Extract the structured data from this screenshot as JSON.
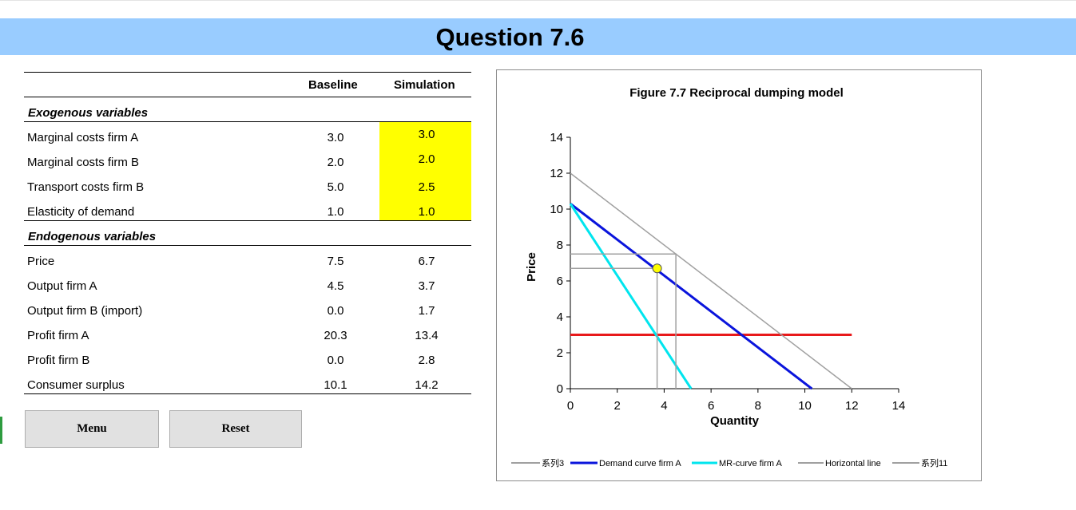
{
  "title": "Question 7.6",
  "table": {
    "col_baseline": "Baseline",
    "col_simulation": "Simulation",
    "exogenous_label": "Exogenous variables",
    "endogenous_label": "Endogenous variables",
    "exogenous": [
      {
        "label": "Marginal costs firm A",
        "baseline": "3.0",
        "simulation": "3.0"
      },
      {
        "label": "Marginal costs firm B",
        "baseline": "2.0",
        "simulation": "2.0"
      },
      {
        "label": "Transport costs firm B",
        "baseline": "5.0",
        "simulation": "2.5"
      },
      {
        "label": "Elasticity of demand",
        "baseline": "1.0",
        "simulation": "1.0"
      }
    ],
    "endogenous": [
      {
        "label": "Price",
        "baseline": "7.5",
        "simulation": "6.7"
      },
      {
        "label": "Output firm A",
        "baseline": "4.5",
        "simulation": "3.7"
      },
      {
        "label": "Output firm B (import)",
        "baseline": "0.0",
        "simulation": "1.7"
      },
      {
        "label": "Profit firm A",
        "baseline": "20.3",
        "simulation": "13.4"
      },
      {
        "label": "Profit firm B",
        "baseline": "0.0",
        "simulation": "2.8"
      },
      {
        "label": "Consumer surplus",
        "baseline": "10.1",
        "simulation": "14.2"
      }
    ],
    "highlight_color": "#ffff00"
  },
  "buttons": {
    "menu": "Menu",
    "reset": "Reset"
  },
  "chart_data": {
    "type": "line",
    "title": "Figure 7.7 Reciprocal dumping model",
    "xlabel": "Quantity",
    "ylabel": "Price",
    "xlim": [
      0,
      14
    ],
    "ylim": [
      0,
      14
    ],
    "xticks": [
      "0",
      "2",
      "4",
      "6",
      "8",
      "10",
      "12",
      "14"
    ],
    "yticks": [
      "0",
      "2",
      "4",
      "6",
      "8",
      "10",
      "12",
      "14"
    ],
    "grid": false,
    "legend_position": "bottom",
    "series": [
      {
        "name": "系列3",
        "color": "#a0a0a0",
        "style": "solid",
        "points": [
          [
            0,
            12
          ],
          [
            12,
            0
          ]
        ]
      },
      {
        "name": "Demand curve firm A",
        "color": "#0a14dc",
        "style": "solid",
        "points": [
          [
            0,
            10.3
          ],
          [
            10.3,
            0
          ]
        ]
      },
      {
        "name": "MR-curve firm A",
        "color": "#00e5ee",
        "style": "solid",
        "points": [
          [
            0,
            10.3
          ],
          [
            5.15,
            0
          ]
        ]
      },
      {
        "name": "Horizontal line",
        "color": "#a0a0a0",
        "style": "solid",
        "points": [
          [
            0,
            7.5
          ],
          [
            4.5,
            7.5
          ],
          [
            4.5,
            0
          ]
        ]
      },
      {
        "name": "系列11",
        "color": "#a0a0a0",
        "style": "solid",
        "points": [
          [
            0,
            6.7
          ],
          [
            3.7,
            6.7
          ],
          [
            3.7,
            0
          ]
        ]
      }
    ],
    "marginal_cost_line": {
      "color": "#e8191b",
      "points": [
        [
          0,
          3
        ],
        [
          12,
          3
        ]
      ]
    },
    "equilibrium_point": {
      "x": 3.7,
      "y": 6.7,
      "fill": "#ffff00",
      "stroke": "#555555"
    }
  }
}
